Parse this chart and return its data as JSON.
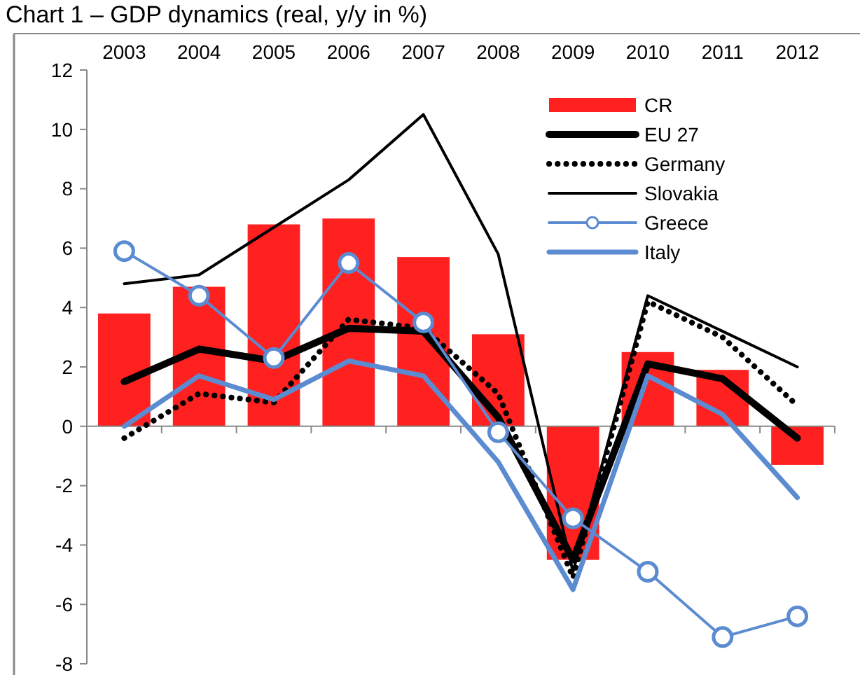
{
  "chart_data": {
    "type": "bar",
    "title": "Chart 1 – GDP dynamics (real, y/y in %)",
    "categories": [
      "2003",
      "2004",
      "2005",
      "2006",
      "2007",
      "2008",
      "2009",
      "2010",
      "2011",
      "2012"
    ],
    "ylim": [
      -8,
      12
    ],
    "yticks": [
      -8,
      -6,
      -4,
      -2,
      0,
      2,
      4,
      6,
      8,
      10,
      12
    ],
    "legend": "top right",
    "series": [
      {
        "name": "CR",
        "color": "#ff2020",
        "values": [
          3.8,
          4.7,
          6.8,
          7.0,
          5.7,
          3.1,
          -4.5,
          2.5,
          1.9,
          -1.3
        ]
      },
      {
        "name": "EU 27",
        "type": "line",
        "color": "#000000",
        "marker": "none",
        "line_style": "solid",
        "values": [
          1.5,
          2.6,
          2.2,
          3.3,
          3.2,
          0.3,
          -4.5,
          2.1,
          1.6,
          -0.4
        ]
      },
      {
        "name": "Germany",
        "type": "line",
        "color": "#000000",
        "marker": "none",
        "line_style": "dotted",
        "values": [
          -0.4,
          1.1,
          0.8,
          3.6,
          3.3,
          1.1,
          -5.1,
          4.2,
          3.0,
          0.7
        ]
      },
      {
        "name": "Slovakia",
        "type": "line",
        "color": "#000000",
        "marker": "none",
        "line_style": "solid",
        "values": [
          4.8,
          5.1,
          6.7,
          8.3,
          10.5,
          5.8,
          -4.9,
          4.4,
          3.2,
          2.0
        ]
      },
      {
        "name": "Greece",
        "type": "line",
        "color": "#5b8bd0",
        "marker": "circle",
        "line_style": "solid",
        "values": [
          5.9,
          4.4,
          2.3,
          5.5,
          3.5,
          -0.2,
          -3.1,
          -4.9,
          -7.1,
          -6.4
        ]
      },
      {
        "name": "Italy",
        "type": "line",
        "color": "#5b8bd0",
        "marker": "none",
        "line_style": "solid",
        "values": [
          0.0,
          1.7,
          0.9,
          2.2,
          1.7,
          -1.2,
          -5.5,
          1.7,
          0.4,
          -2.4
        ]
      }
    ]
  }
}
